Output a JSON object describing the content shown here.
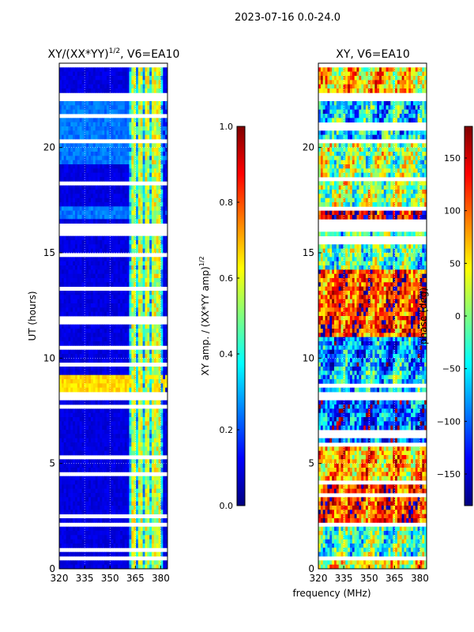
{
  "suptitle": "2023-07-16 0.0-24.0",
  "shared_xlabel": "frequency (MHz)",
  "colormap": [
    "#00007f",
    "#0000ff",
    "#007fff",
    "#00ffff",
    "#7fff7f",
    "#ffff00",
    "#ff7f00",
    "#ff0000",
    "#7f0000"
  ],
  "gap_color": "#ffffff",
  "chart_data": [
    {
      "type": "heatmap",
      "title_main": "XY/(XX*YY)",
      "title_sup": "1/2",
      "title_rest": ", V6=EA10",
      "ylabel": "UT (hours)",
      "xlim": [
        320,
        384
      ],
      "ylim": [
        0,
        24
      ],
      "xticks": [
        320,
        335,
        350,
        365,
        380
      ],
      "yticks": [
        0,
        5,
        10,
        15,
        20
      ],
      "grid": true,
      "colorbar": {
        "label_main": "XY amp. / (XX*YY amp)",
        "label_sup": "1/2",
        "range": [
          0.0,
          1.0
        ],
        "ticks": [
          "0.0",
          "0.2",
          "0.4",
          "0.6",
          "0.8",
          "1.0"
        ]
      },
      "background_value": 0.07,
      "bright_channel_band_mhz": [
        362,
        381
      ],
      "bright_channels_mhz": [
        364,
        368,
        372,
        376,
        379
      ],
      "bright_level": 0.45,
      "highlight_periods_hours": [
        [
          16.6,
          17.1,
          0.2
        ],
        [
          8.2,
          9.2,
          0.62
        ],
        [
          19.3,
          22.5,
          0.2
        ]
      ],
      "data_gaps_hours": [
        [
          0.35,
          0.6
        ],
        [
          2.0,
          2.3
        ],
        [
          8.1,
          8.3
        ],
        [
          16.1,
          16.4
        ],
        [
          20.2,
          20.4
        ],
        [
          22.2,
          22.5
        ]
      ]
    },
    {
      "type": "heatmap",
      "title": "XY, V6=EA10",
      "xlim": [
        320,
        384
      ],
      "ylim": [
        0,
        24
      ],
      "xticks": [
        320,
        335,
        350,
        365,
        380
      ],
      "yticks": [
        0,
        5,
        10,
        15,
        20
      ],
      "grid": true,
      "colorbar": {
        "label": "phase (deg)",
        "range": [
          -180,
          180
        ],
        "ticks": [
          "−150",
          "−100",
          "−50",
          "0",
          "50",
          "100",
          "150"
        ]
      },
      "phase_bands_hours": [
        [
          0,
          0.35,
          40
        ],
        [
          0.6,
          2.0,
          -20
        ],
        [
          2.3,
          4.2,
          120
        ],
        [
          4.2,
          6.0,
          70
        ],
        [
          6.0,
          8.1,
          -110
        ],
        [
          8.3,
          9.5,
          -50
        ],
        [
          9.5,
          11.0,
          -80
        ],
        [
          11.0,
          14.2,
          115
        ],
        [
          14.2,
          16.1,
          -20
        ],
        [
          16.4,
          17.1,
          150
        ],
        [
          17.1,
          20.2,
          10
        ],
        [
          20.4,
          22.2,
          -60
        ],
        [
          22.5,
          24.0,
          60
        ]
      ],
      "data_gaps_hours": [
        [
          0.35,
          0.6
        ],
        [
          2.0,
          2.3
        ],
        [
          8.1,
          8.3
        ],
        [
          16.1,
          16.4
        ],
        [
          20.2,
          20.4
        ],
        [
          22.2,
          22.5
        ]
      ]
    }
  ]
}
